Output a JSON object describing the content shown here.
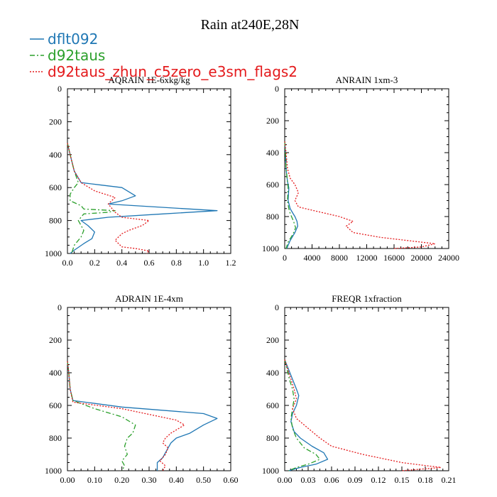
{
  "title": "Rain at240E,28N",
  "legend": [
    {
      "name": "dflt092",
      "color": "#1f77b4",
      "dash": "solid"
    },
    {
      "name": "d92taus",
      "color": "#2ca02c",
      "dash": "dashdot"
    },
    {
      "name": "d92taus_zhun_c5zero_e3sm_flags2",
      "color": "#e41a1c",
      "dash": "dotted"
    }
  ],
  "chart_data": [
    {
      "type": "line",
      "title": "AQRAIN  1E-6xkg/kg",
      "xlim": [
        0,
        1.2
      ],
      "xticks": [
        "0.0",
        "0.2",
        "0.4",
        "0.6",
        "0.8",
        "1.0",
        "1.2"
      ],
      "xtick_values": [
        0,
        0.2,
        0.4,
        0.6,
        0.8,
        1.0,
        1.2
      ],
      "ylim": [
        0,
        1000
      ],
      "yticks": [
        "0",
        "200",
        "400",
        "600",
        "800",
        "1000"
      ],
      "ytick_values": [
        0,
        200,
        400,
        600,
        800,
        1000
      ],
      "series": [
        {
          "name": "dflt092",
          "x": [
            0,
            0.02,
            0.05,
            0.1,
            0.25,
            0.4,
            0.5,
            0.4,
            0.3,
            1.1,
            0.7,
            0.3,
            0.1,
            0.15,
            0.2,
            0.18,
            0.12,
            0.05,
            0.02
          ],
          "y": [
            330,
            400,
            500,
            570,
            585,
            600,
            650,
            680,
            700,
            740,
            760,
            780,
            800,
            830,
            870,
            910,
            940,
            980,
            1000
          ]
        },
        {
          "name": "d92taus",
          "x": [
            0,
            0.02,
            0.05,
            0.08,
            0.05,
            0.02,
            0.02,
            0.1,
            0.12,
            0.35,
            0.3,
            0.12,
            0.08,
            0.1,
            0.12,
            0.1,
            0.05,
            0.03
          ],
          "y": [
            330,
            400,
            500,
            570,
            600,
            640,
            680,
            710,
            730,
            740,
            750,
            760,
            800,
            830,
            860,
            900,
            950,
            1000
          ]
        },
        {
          "name": "d92taus_zhun_c5zero_e3sm_flags2",
          "x": [
            0,
            0.02,
            0.05,
            0.1,
            0.2,
            0.35,
            0.3,
            0.35,
            0.4,
            0.6,
            0.55,
            0.45,
            0.4,
            0.35,
            0.4,
            0.5,
            0.6,
            0.58
          ],
          "y": [
            330,
            400,
            500,
            570,
            620,
            660,
            700,
            750,
            780,
            800,
            830,
            860,
            880,
            920,
            960,
            970,
            985,
            1000
          ]
        }
      ]
    },
    {
      "type": "line",
      "title": "ANRAIN  1xm-3",
      "xlim": [
        0,
        24000
      ],
      "xticks": [
        "0",
        "4000",
        "8000",
        "12000",
        "16000",
        "20000",
        "24000"
      ],
      "xtick_values": [
        0,
        4000,
        8000,
        12000,
        16000,
        20000,
        24000
      ],
      "ylim": [
        0,
        1000
      ],
      "yticks": [
        "0",
        "200",
        "400",
        "600",
        "800",
        "1000"
      ],
      "ytick_values": [
        0,
        200,
        400,
        600,
        800,
        1000
      ],
      "series": [
        {
          "name": "dflt092",
          "x": [
            0,
            100,
            200,
            400,
            600,
            500,
            800,
            1200,
            1500,
            1800,
            1900,
            1500,
            800,
            300
          ],
          "y": [
            330,
            400,
            500,
            580,
            620,
            700,
            750,
            780,
            800,
            830,
            860,
            900,
            950,
            1000
          ]
        },
        {
          "name": "d92taus",
          "x": [
            0,
            100,
            200,
            400,
            500,
            400,
            600,
            800,
            1000,
            1300,
            1600,
            1200,
            500,
            200
          ],
          "y": [
            330,
            400,
            500,
            580,
            620,
            700,
            750,
            780,
            800,
            830,
            870,
            910,
            960,
            1000
          ]
        },
        {
          "name": "d92taus_zhun_c5zero_e3sm_flags2",
          "x": [
            0,
            200,
            400,
            800,
            1500,
            2000,
            1500,
            2000,
            5000,
            8000,
            10000,
            9000,
            10000,
            14000,
            18000,
            22000,
            20000,
            16000
          ],
          "y": [
            330,
            400,
            500,
            560,
            600,
            650,
            700,
            740,
            770,
            800,
            830,
            860,
            900,
            930,
            950,
            970,
            990,
            1000
          ]
        }
      ]
    },
    {
      "type": "line",
      "title": "ADRAIN  1E-4xm",
      "xlim": [
        0,
        0.6
      ],
      "xticks": [
        "0.00",
        "0.10",
        "0.20",
        "0.30",
        "0.40",
        "0.50",
        "0.60"
      ],
      "xtick_values": [
        0,
        0.1,
        0.2,
        0.3,
        0.4,
        0.5,
        0.6
      ],
      "ylim": [
        0,
        1000
      ],
      "yticks": [
        "0",
        "200",
        "400",
        "600",
        "800",
        "1000"
      ],
      "ytick_values": [
        0,
        200,
        400,
        600,
        800,
        1000
      ],
      "series": [
        {
          "name": "dflt092",
          "x": [
            0,
            0.005,
            0.01,
            0.02,
            0.2,
            0.5,
            0.55,
            0.5,
            0.45,
            0.4,
            0.38,
            0.37,
            0.36,
            0.35,
            0.33,
            0.33
          ],
          "y": [
            330,
            400,
            500,
            570,
            610,
            650,
            680,
            720,
            770,
            800,
            830,
            860,
            890,
            920,
            950,
            1000
          ]
        },
        {
          "name": "d92taus",
          "x": [
            0,
            0.005,
            0.01,
            0.02,
            0.1,
            0.2,
            0.25,
            0.24,
            0.22,
            0.21,
            0.22,
            0.2,
            0.21,
            0.2
          ],
          "y": [
            330,
            400,
            500,
            570,
            620,
            670,
            720,
            770,
            800,
            850,
            900,
            940,
            970,
            1000
          ]
        },
        {
          "name": "d92taus_zhun_c5zero_e3sm_flags2",
          "x": [
            0,
            0.005,
            0.01,
            0.02,
            0.2,
            0.4,
            0.43,
            0.38,
            0.36,
            0.35,
            0.37,
            0.36,
            0.34,
            0.36,
            0.35
          ],
          "y": [
            330,
            400,
            500,
            580,
            620,
            690,
            720,
            770,
            800,
            830,
            860,
            900,
            940,
            970,
            1000
          ]
        }
      ]
    },
    {
      "type": "line",
      "title": "FREQR  1xfraction",
      "xlim": [
        0,
        0.21
      ],
      "xticks": [
        "0.00",
        "0.03",
        "0.06",
        "0.09",
        "0.12",
        "0.15",
        "0.18",
        "0.21"
      ],
      "xtick_values": [
        0,
        0.03,
        0.06,
        0.09,
        0.12,
        0.15,
        0.18,
        0.21
      ],
      "ylim": [
        0,
        1000
      ],
      "yticks": [
        "0",
        "200",
        "400",
        "600",
        "800",
        "1000"
      ],
      "ytick_values": [
        0,
        200,
        400,
        600,
        800,
        1000
      ],
      "series": [
        {
          "name": "dflt092",
          "x": [
            0,
            0.005,
            0.01,
            0.015,
            0.018,
            0.015,
            0.01,
            0.008,
            0.012,
            0.02,
            0.035,
            0.05,
            0.055,
            0.04,
            0.02,
            0.005
          ],
          "y": [
            320,
            380,
            440,
            500,
            540,
            600,
            650,
            700,
            760,
            800,
            850,
            890,
            930,
            960,
            980,
            1000
          ]
        },
        {
          "name": "d92taus",
          "x": [
            0,
            0.003,
            0.006,
            0.01,
            0.012,
            0.01,
            0.008,
            0.01,
            0.015,
            0.025,
            0.04,
            0.045,
            0.03,
            0.015,
            0.005
          ],
          "y": [
            320,
            380,
            440,
            500,
            560,
            620,
            680,
            740,
            800,
            860,
            900,
            930,
            960,
            980,
            1000
          ]
        },
        {
          "name": "d92taus_zhun_c5zero_e3sm_flags2",
          "x": [
            0,
            0.004,
            0.008,
            0.012,
            0.015,
            0.01,
            0.015,
            0.03,
            0.045,
            0.06,
            0.1,
            0.15,
            0.2,
            0.15
          ],
          "y": [
            320,
            380,
            440,
            500,
            560,
            620,
            680,
            740,
            800,
            850,
            900,
            950,
            980,
            1000
          ]
        }
      ]
    }
  ]
}
